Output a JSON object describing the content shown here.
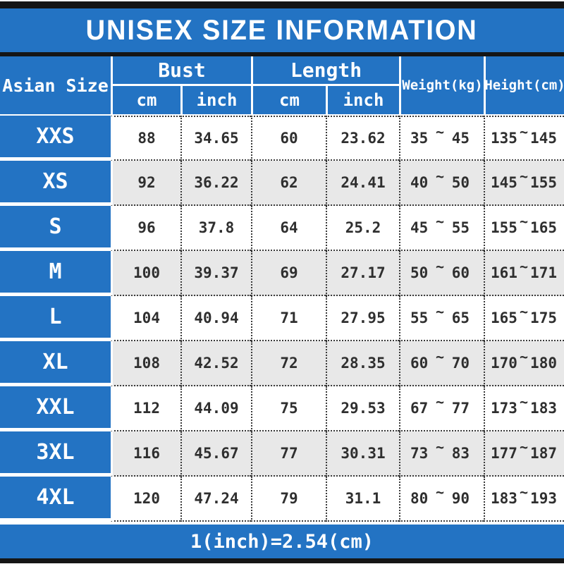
{
  "title": "UNISEX SIZE INFORMATION",
  "footer_note": "1(inch)=2.54(cm)",
  "range_separator": "~",
  "colors": {
    "header_blue": "#2373c3",
    "alt_row_gray": "#e8e8e8",
    "border_black": "#151515",
    "data_text": "#2f2f2f"
  },
  "header": {
    "corner": "Asian Size",
    "bust": {
      "label": "Bust",
      "sub": [
        "cm",
        "inch"
      ]
    },
    "length": {
      "label": "Length",
      "sub": [
        "cm",
        "inch"
      ]
    },
    "weight": "Weight(kg)",
    "height": "Height(cm)"
  },
  "rows": [
    {
      "size": "XXS",
      "bust_cm": "88",
      "bust_inch": "34.65",
      "length_cm": "60",
      "length_inch": "23.62",
      "weight_min": "35",
      "weight_max": "45",
      "height_min": "135",
      "height_max": "145"
    },
    {
      "size": "XS",
      "bust_cm": "92",
      "bust_inch": "36.22",
      "length_cm": "62",
      "length_inch": "24.41",
      "weight_min": "40",
      "weight_max": "50",
      "height_min": "145",
      "height_max": "155"
    },
    {
      "size": "S",
      "bust_cm": "96",
      "bust_inch": "37.8",
      "length_cm": "64",
      "length_inch": "25.2",
      "weight_min": "45",
      "weight_max": "55",
      "height_min": "155",
      "height_max": "165"
    },
    {
      "size": "M",
      "bust_cm": "100",
      "bust_inch": "39.37",
      "length_cm": "69",
      "length_inch": "27.17",
      "weight_min": "50",
      "weight_max": "60",
      "height_min": "161",
      "height_max": "171"
    },
    {
      "size": "L",
      "bust_cm": "104",
      "bust_inch": "40.94",
      "length_cm": "71",
      "length_inch": "27.95",
      "weight_min": "55",
      "weight_max": "65",
      "height_min": "165",
      "height_max": "175"
    },
    {
      "size": "XL",
      "bust_cm": "108",
      "bust_inch": "42.52",
      "length_cm": "72",
      "length_inch": "28.35",
      "weight_min": "60",
      "weight_max": "70",
      "height_min": "170",
      "height_max": "180"
    },
    {
      "size": "XXL",
      "bust_cm": "112",
      "bust_inch": "44.09",
      "length_cm": "75",
      "length_inch": "29.53",
      "weight_min": "67",
      "weight_max": "77",
      "height_min": "173",
      "height_max": "183"
    },
    {
      "size": "3XL",
      "bust_cm": "116",
      "bust_inch": "45.67",
      "length_cm": "77",
      "length_inch": "30.31",
      "weight_min": "73",
      "weight_max": "83",
      "height_min": "177",
      "height_max": "187"
    },
    {
      "size": "4XL",
      "bust_cm": "120",
      "bust_inch": "47.24",
      "length_cm": "79",
      "length_inch": "31.1",
      "weight_min": "80",
      "weight_max": "90",
      "height_min": "183",
      "height_max": "193"
    }
  ],
  "chart_data": {
    "type": "table",
    "title": "UNISEX SIZE INFORMATION",
    "columns": [
      "Asian Size",
      "Bust cm",
      "Bust inch",
      "Length cm",
      "Length inch",
      "Weight(kg)",
      "Height(cm)"
    ],
    "rows": [
      [
        "XXS",
        88,
        34.65,
        60,
        23.62,
        "35~45",
        "135~145"
      ],
      [
        "XS",
        92,
        36.22,
        62,
        24.41,
        "40~50",
        "145~155"
      ],
      [
        "S",
        96,
        37.8,
        64,
        25.2,
        "45~55",
        "155~165"
      ],
      [
        "M",
        100,
        39.37,
        69,
        27.17,
        "50~60",
        "161~171"
      ],
      [
        "L",
        104,
        40.94,
        71,
        27.95,
        "55~65",
        "165~175"
      ],
      [
        "XL",
        108,
        42.52,
        72,
        28.35,
        "60~70",
        "170~180"
      ],
      [
        "XXL",
        112,
        44.09,
        75,
        29.53,
        "67~77",
        "173~183"
      ],
      [
        "3XL",
        116,
        45.67,
        77,
        30.31,
        "73~83",
        "177~187"
      ],
      [
        "4XL",
        120,
        47.24,
        79,
        31.1,
        "80~90",
        "183~193"
      ]
    ],
    "footnote": "1(inch)=2.54(cm)"
  }
}
